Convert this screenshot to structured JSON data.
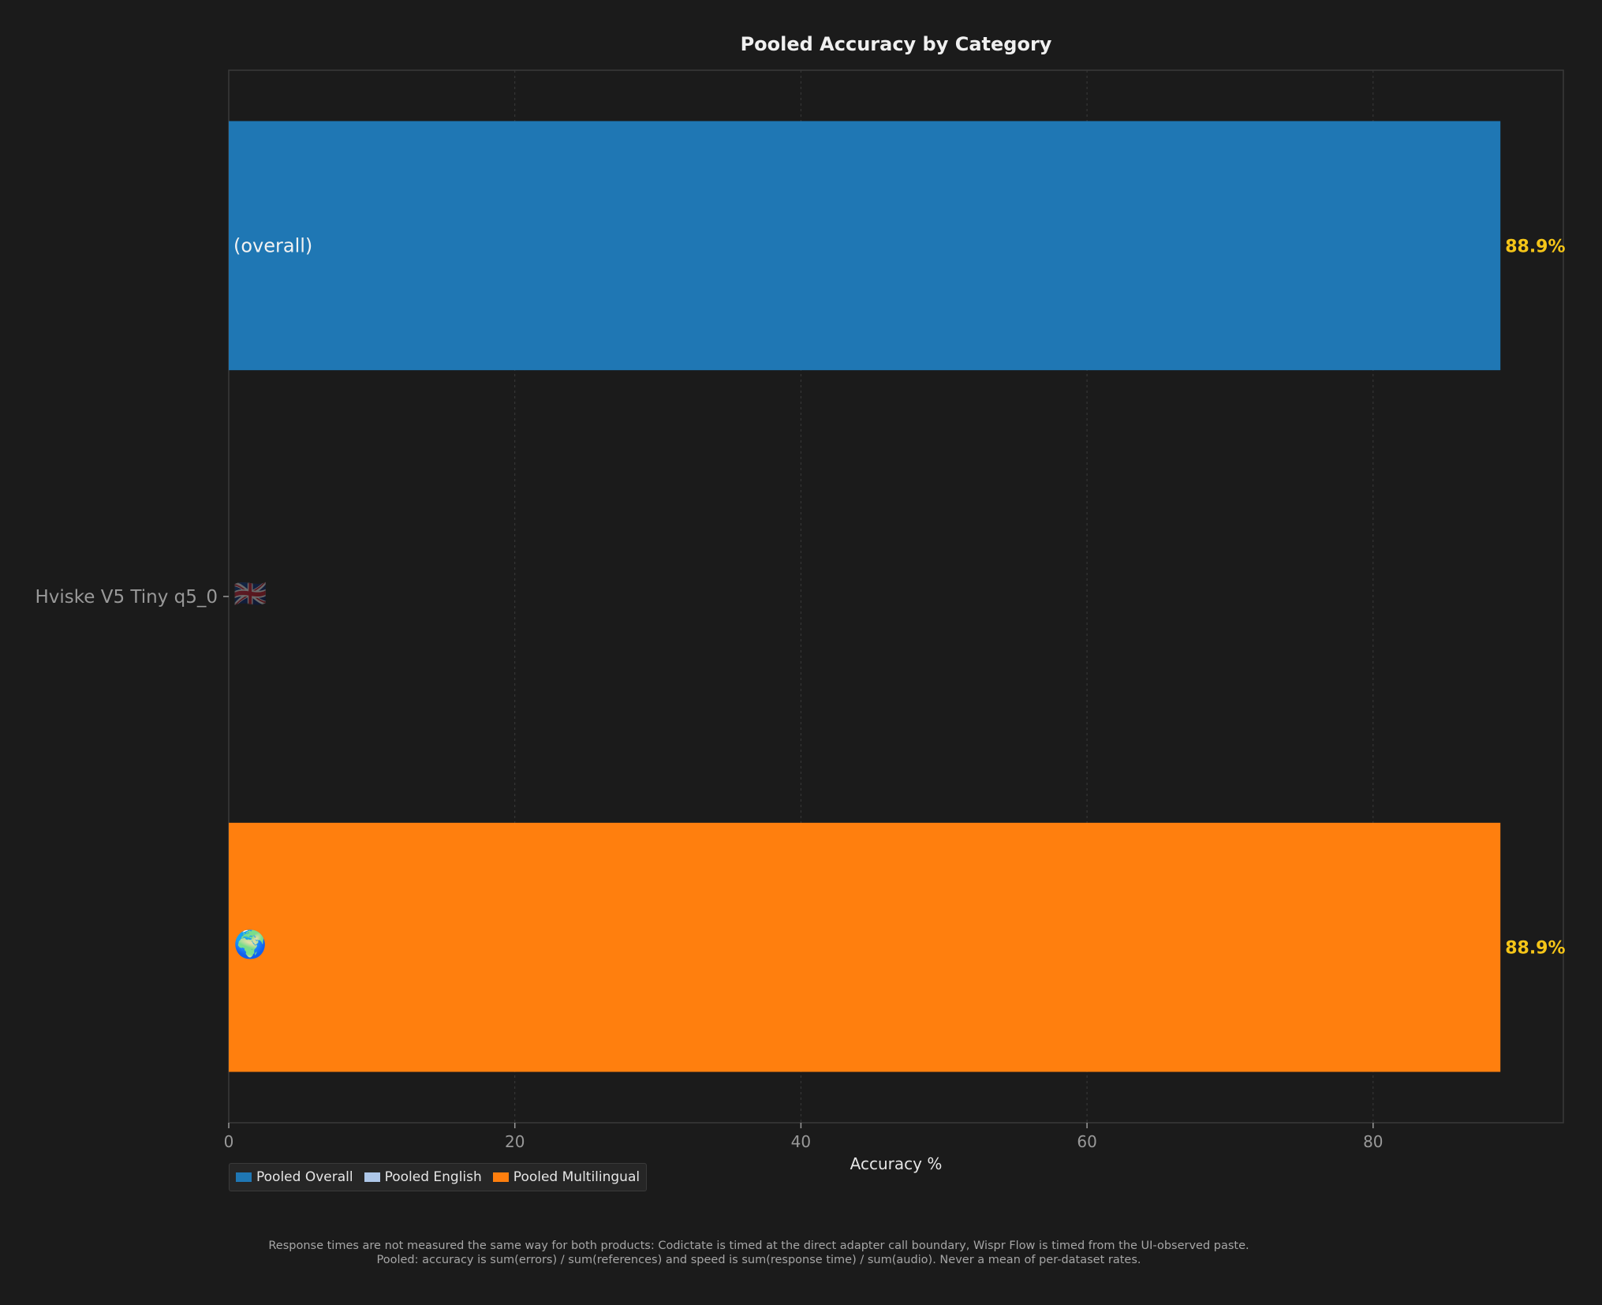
{
  "chart_data": {
    "type": "bar",
    "orientation": "horizontal",
    "title": "Pooled Accuracy by Category",
    "xlabel": "Accuracy %",
    "xlim": [
      0,
      93.3
    ],
    "xticks": [
      0,
      20,
      40,
      60,
      80
    ],
    "ylabel_model": "Hviske V5 Tiny q5_0",
    "grid": "x, dotted",
    "legend_placement": "bottom-left",
    "series": [
      {
        "name": "Pooled Overall",
        "value": 88.9,
        "value_label": "88.9%",
        "bar_label": "(overall)",
        "color": "#1f77b4"
      },
      {
        "name": "Pooled English",
        "value": null,
        "value_label": "",
        "bar_label": "🇬🇧",
        "color": "#aec7e8"
      },
      {
        "name": "Pooled Multilingual",
        "value": 88.9,
        "value_label": "88.9%",
        "bar_label": "🌍",
        "color": "#ff7f0e"
      }
    ]
  },
  "colors": {
    "background": "#1b1b1b",
    "value_label": "#f5c518",
    "text": "#e6e6e6",
    "muted_text": "#999999",
    "grid": "#3a3a3a"
  },
  "footnote": {
    "line1": "Response times are not measured the same way for both products: Codictate is timed at the direct adapter call boundary, Wispr Flow is timed from the UI-observed paste.",
    "line2": "Pooled: accuracy is sum(errors) / sum(references) and speed is sum(response time) / sum(audio). Never a mean of per-dataset rates."
  }
}
